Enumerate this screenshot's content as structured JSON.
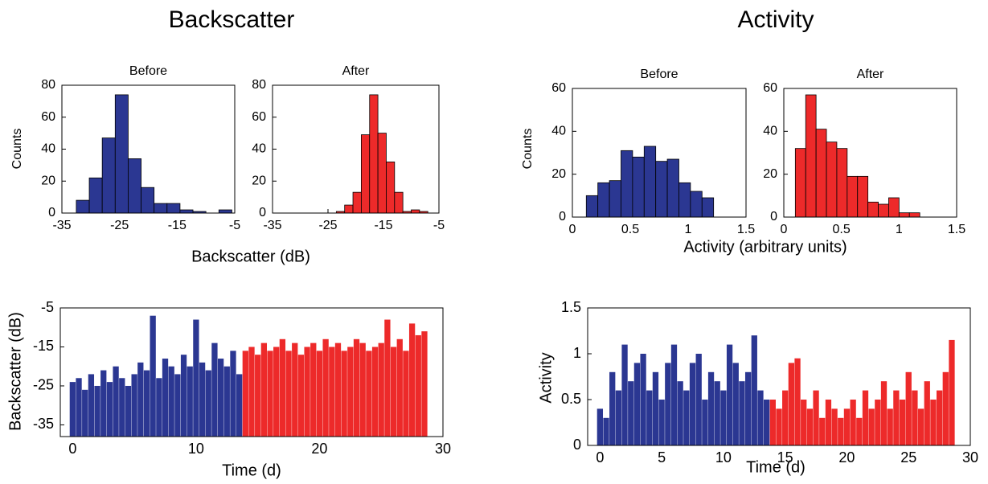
{
  "sections": [
    {
      "title": "Backscatter"
    },
    {
      "title": "Activity"
    }
  ],
  "chart_data": [
    {
      "type": "histogram",
      "title": "Before",
      "ylabel": "Counts",
      "xlabel": "Backscatter (dB)",
      "color": "#2b3792",
      "bins": [
        -32.5,
        -30.25,
        -28,
        -25.75,
        -23.5,
        -21.25,
        -19,
        -16.75,
        -14.5,
        -12.25,
        -10,
        -7.75,
        -5.5
      ],
      "values": [
        8,
        22,
        47,
        74,
        34,
        16,
        6,
        6,
        2,
        1,
        0,
        2
      ],
      "xlim": [
        -35,
        -5
      ],
      "xticks": [
        -35,
        -25,
        -15,
        -5
      ],
      "ylim": [
        0,
        80
      ],
      "yticks": [
        0,
        20,
        40,
        60,
        80
      ]
    },
    {
      "type": "histogram",
      "title": "After",
      "color": "#ed2a2a",
      "bins": [
        -23.5,
        -22,
        -20.5,
        -19,
        -17.5,
        -16,
        -14.5,
        -13,
        -11.5,
        -10,
        -8.5,
        -7
      ],
      "values": [
        1,
        5,
        13,
        49,
        74,
        50,
        32,
        13,
        1,
        2,
        1
      ],
      "xlim": [
        -35,
        -5
      ],
      "xticks": [
        -35,
        -25,
        -15,
        -5
      ],
      "ylim": [
        0,
        80
      ],
      "yticks": [
        0,
        20,
        40,
        60,
        80
      ]
    },
    {
      "type": "histogram",
      "title": "Before",
      "ylabel": "Counts",
      "xlabel": "Activity (arbitrary units)",
      "color": "#2b3792",
      "bins": [
        0.12,
        0.22,
        0.32,
        0.42,
        0.52,
        0.62,
        0.72,
        0.82,
        0.92,
        1.02,
        1.12,
        1.22
      ],
      "values": [
        10,
        16,
        17,
        31,
        28,
        33,
        26,
        27,
        16,
        12,
        9
      ],
      "xlim": [
        0,
        1.5
      ],
      "xticks": [
        0,
        0.5,
        1,
        1.5
      ],
      "ylim": [
        0,
        60
      ],
      "yticks": [
        0,
        20,
        40,
        60
      ]
    },
    {
      "type": "histogram",
      "title": "After",
      "color": "#ed2a2a",
      "bins": [
        0.1,
        0.19,
        0.28,
        0.37,
        0.46,
        0.55,
        0.64,
        0.73,
        0.82,
        0.91,
        1.0,
        1.09,
        1.18
      ],
      "values": [
        32,
        57,
        41,
        35,
        32,
        19,
        19,
        7,
        6,
        9,
        2,
        2
      ],
      "xlim": [
        0,
        1.5
      ],
      "xticks": [
        0,
        0.5,
        1,
        1.5
      ],
      "ylim": [
        0,
        60
      ],
      "yticks": [
        0,
        20,
        40,
        60
      ]
    },
    {
      "type": "bar",
      "ylabel": "Backscatter (dB)",
      "xlabel": "Time (d)",
      "xlim": [
        -1,
        30
      ],
      "xticks": [
        0,
        10,
        20,
        30
      ],
      "ylim": [
        -38,
        -5
      ],
      "yticks": [
        -35,
        -25,
        -15,
        -5
      ],
      "series": [
        {
          "color": "#2b3792",
          "x": [
            0,
            0.5,
            1,
            1.5,
            2,
            2.5,
            3,
            3.5,
            4,
            4.5,
            5,
            5.5,
            6,
            6.5,
            7,
            7.5,
            8,
            8.5,
            9,
            9.5,
            10,
            10.5,
            11,
            11.5,
            12,
            12.5,
            13,
            13.5
          ],
          "values": [
            -24,
            -23,
            -26,
            -22,
            -25,
            -21,
            -24,
            -20,
            -23,
            -25,
            -22,
            -19,
            -21,
            -7,
            -23,
            -18,
            -20,
            -22,
            -17,
            -20,
            -8,
            -19,
            -21,
            -14,
            -18,
            -20,
            -16,
            -22
          ]
        },
        {
          "color": "#ed2a2a",
          "x": [
            14,
            14.5,
            15,
            15.5,
            16,
            16.5,
            17,
            17.5,
            18,
            18.5,
            19,
            19.5,
            20,
            20.5,
            21,
            21.5,
            22,
            22.5,
            23,
            23.5,
            24,
            24.5,
            25,
            25.5,
            26,
            26.5,
            27,
            27.5,
            28,
            28.5
          ],
          "values": [
            -16,
            -15,
            -17,
            -14,
            -16,
            -15,
            -13,
            -16,
            -14,
            -17,
            -15,
            -14,
            -16,
            -13,
            -15,
            -14,
            -16,
            -15,
            -13,
            -14,
            -16,
            -15,
            -14,
            -8,
            -15,
            -13,
            -16,
            -9,
            -12,
            -11
          ]
        }
      ]
    },
    {
      "type": "bar",
      "ylabel": "Activity",
      "xlabel": "Time (d)",
      "xlim": [
        -1,
        30
      ],
      "xticks": [
        0,
        5,
        10,
        15,
        20,
        25,
        30
      ],
      "ylim": [
        0,
        1.5
      ],
      "yticks": [
        0,
        0.5,
        1,
        1.5
      ],
      "series": [
        {
          "color": "#2b3792",
          "x": [
            0,
            0.5,
            1,
            1.5,
            2,
            2.5,
            3,
            3.5,
            4,
            4.5,
            5,
            5.5,
            6,
            6.5,
            7,
            7.5,
            8,
            8.5,
            9,
            9.5,
            10,
            10.5,
            11,
            11.5,
            12,
            12.5,
            13,
            13.5
          ],
          "values": [
            0.4,
            0.3,
            0.8,
            0.6,
            1.1,
            0.7,
            0.9,
            1.0,
            0.6,
            0.8,
            0.5,
            0.9,
            1.1,
            0.7,
            0.6,
            0.9,
            1.0,
            0.5,
            0.8,
            0.7,
            0.6,
            1.1,
            0.9,
            0.7,
            0.8,
            1.2,
            0.6,
            0.5
          ]
        },
        {
          "color": "#ed2a2a",
          "x": [
            14,
            14.5,
            15,
            15.5,
            16,
            16.5,
            17,
            17.5,
            18,
            18.5,
            19,
            19.5,
            20,
            20.5,
            21,
            21.5,
            22,
            22.5,
            23,
            23.5,
            24,
            24.5,
            25,
            25.5,
            26,
            26.5,
            27,
            27.5,
            28,
            28.5
          ],
          "values": [
            0.5,
            0.4,
            0.6,
            0.9,
            0.95,
            0.5,
            0.4,
            0.6,
            0.3,
            0.5,
            0.4,
            0.3,
            0.4,
            0.5,
            0.3,
            0.6,
            0.4,
            0.5,
            0.7,
            0.4,
            0.6,
            0.5,
            0.8,
            0.6,
            0.4,
            0.7,
            0.5,
            0.6,
            0.8,
            1.15
          ]
        }
      ]
    }
  ]
}
